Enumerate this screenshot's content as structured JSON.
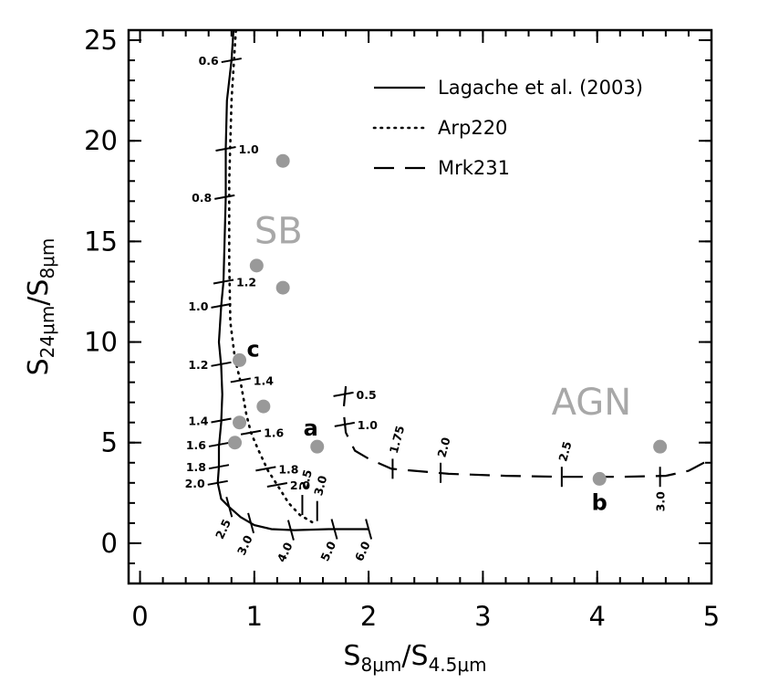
{
  "chart_data": {
    "type": "line",
    "xlabel": {
      "main": "S",
      "sub_num": "8μm",
      "slash": "/",
      "main2": "S",
      "sub_den": "4.5μm"
    },
    "ylabel": {
      "main": "S",
      "sub_num": "24μm",
      "slash": "/",
      "main2": "S",
      "sub_den": "8μm"
    },
    "xlim": [
      -0.1,
      5.0
    ],
    "ylim": [
      -2.0,
      25.5
    ],
    "xticks": [
      0,
      1,
      2,
      3,
      4,
      5
    ],
    "yticks": [
      0,
      5,
      10,
      15,
      20,
      25
    ],
    "xtick_labels": [
      "0",
      "1",
      "2",
      "3",
      "4",
      "5"
    ],
    "ytick_labels": [
      "0",
      "5",
      "10",
      "15",
      "20",
      "25"
    ],
    "grid": false,
    "legend_position": "top-right",
    "series": [
      {
        "name": "Lagache et al. (2003)",
        "style": "solid",
        "points": [
          [
            0.83,
            26.5
          ],
          [
            0.8,
            24.0
          ],
          [
            0.76,
            22.0
          ],
          [
            0.75,
            19.6
          ],
          [
            0.75,
            17.2
          ],
          [
            0.74,
            15.0
          ],
          [
            0.73,
            13.0
          ],
          [
            0.71,
            11.8
          ],
          [
            0.69,
            10.0
          ],
          [
            0.71,
            8.8
          ],
          [
            0.72,
            7.4
          ],
          [
            0.71,
            6.0
          ],
          [
            0.69,
            4.8
          ],
          [
            0.69,
            3.8
          ],
          [
            0.68,
            3.0
          ],
          [
            0.71,
            2.2
          ],
          [
            0.78,
            1.8
          ],
          [
            0.88,
            1.3
          ],
          [
            1.0,
            0.9
          ],
          [
            1.15,
            0.7
          ],
          [
            1.35,
            0.65
          ],
          [
            1.65,
            0.7
          ],
          [
            2.0,
            0.7
          ]
        ],
        "redshift_marks": [
          {
            "z": "0.6",
            "x": 0.8,
            "y": 24.0,
            "side": "left"
          },
          {
            "z": "1.0",
            "x": 0.75,
            "y": 19.6,
            "side": "right"
          },
          {
            "z": "0.8",
            "x": 0.74,
            "y": 17.2,
            "side": "left"
          },
          {
            "z": "1.2",
            "x": 0.73,
            "y": 13.0,
            "side": "right"
          },
          {
            "z": "1.0",
            "x": 0.71,
            "y": 11.8,
            "side": "left"
          },
          {
            "z": "1.2",
            "x": 0.71,
            "y": 8.9,
            "side": "left"
          },
          {
            "z": "1.4",
            "x": 0.71,
            "y": 6.1,
            "side": "left"
          },
          {
            "z": "1.6",
            "x": 0.69,
            "y": 4.9,
            "side": "left"
          },
          {
            "z": "1.8",
            "x": 0.69,
            "y": 3.8,
            "side": "left"
          },
          {
            "z": "2.0",
            "x": 0.68,
            "y": 3.0,
            "side": "left"
          },
          {
            "z": "2.5",
            "x": 0.78,
            "y": 1.8,
            "side": "below"
          },
          {
            "z": "3.0",
            "x": 0.97,
            "y": 1.0,
            "side": "below"
          },
          {
            "z": "4.0",
            "x": 1.32,
            "y": 0.65,
            "side": "below"
          },
          {
            "z": "5.0",
            "x": 1.7,
            "y": 0.7,
            "side": "below"
          },
          {
            "z": "6.0",
            "x": 2.0,
            "y": 0.7,
            "side": "below"
          }
        ]
      },
      {
        "name": "Arp220",
        "style": "dotted",
        "points": [
          [
            0.85,
            26.5
          ],
          [
            0.8,
            22.0
          ],
          [
            0.78,
            18.0
          ],
          [
            0.78,
            14.0
          ],
          [
            0.79,
            11.0
          ],
          [
            0.83,
            9.2
          ],
          [
            0.88,
            8.0
          ],
          [
            0.93,
            6.4
          ],
          [
            0.97,
            5.5
          ],
          [
            1.03,
            4.7
          ],
          [
            1.12,
            3.6
          ],
          [
            1.2,
            2.9
          ],
          [
            1.3,
            2.0
          ],
          [
            1.4,
            1.4
          ],
          [
            1.52,
            1.0
          ]
        ],
        "redshift_marks": [
          {
            "z": "1.4",
            "x": 0.88,
            "y": 8.1,
            "side": "right"
          },
          {
            "z": "1.6",
            "x": 0.97,
            "y": 5.5,
            "side": "right"
          },
          {
            "z": "1.8",
            "x": 1.1,
            "y": 3.7,
            "side": "right"
          },
          {
            "z": "2.0",
            "x": 1.2,
            "y": 2.9,
            "side": "right"
          },
          {
            "z": "2.5",
            "x": 1.42,
            "y": 1.9,
            "side": "up"
          },
          {
            "z": "3.0",
            "x": 1.55,
            "y": 1.6,
            "side": "up"
          }
        ]
      },
      {
        "name": "Mrk231",
        "style": "dashed",
        "points": [
          [
            1.8,
            7.8
          ],
          [
            1.78,
            6.6
          ],
          [
            1.8,
            5.5
          ],
          [
            1.88,
            4.6
          ],
          [
            2.0,
            4.2
          ],
          [
            2.2,
            3.7
          ],
          [
            2.7,
            3.45
          ],
          [
            3.2,
            3.35
          ],
          [
            3.7,
            3.3
          ],
          [
            4.2,
            3.3
          ],
          [
            4.6,
            3.35
          ],
          [
            4.8,
            3.6
          ],
          [
            5.0,
            4.2
          ]
        ],
        "redshift_marks": [
          {
            "z": "0.5",
            "x": 1.78,
            "y": 7.4,
            "side": "right"
          },
          {
            "z": "1.0",
            "x": 1.79,
            "y": 5.9,
            "side": "right"
          },
          {
            "z": "1.75",
            "x": 2.21,
            "y": 3.7,
            "side": "up"
          },
          {
            "z": "2.0",
            "x": 2.63,
            "y": 3.5,
            "side": "up"
          },
          {
            "z": "2.5",
            "x": 3.69,
            "y": 3.3,
            "side": "up"
          },
          {
            "z": "3.0",
            "x": 4.55,
            "y": 3.3,
            "side": "down"
          }
        ]
      }
    ],
    "points": [
      {
        "x": 1.25,
        "y": 19.0,
        "label": ""
      },
      {
        "x": 1.02,
        "y": 13.8,
        "label": ""
      },
      {
        "x": 1.25,
        "y": 12.7,
        "label": ""
      },
      {
        "x": 0.87,
        "y": 9.1,
        "label": "c"
      },
      {
        "x": 1.08,
        "y": 6.8,
        "label": ""
      },
      {
        "x": 0.87,
        "y": 6.0,
        "label": ""
      },
      {
        "x": 0.83,
        "y": 5.0,
        "label": ""
      },
      {
        "x": 1.55,
        "y": 4.8,
        "label": "a"
      },
      {
        "x": 4.02,
        "y": 3.2,
        "label": "b"
      },
      {
        "x": 4.55,
        "y": 4.8,
        "label": ""
      }
    ],
    "annotations": [
      {
        "text": "SB",
        "x": 1.0,
        "y": 14.9
      },
      {
        "text": "AGN",
        "x": 3.6,
        "y": 6.4
      }
    ]
  }
}
